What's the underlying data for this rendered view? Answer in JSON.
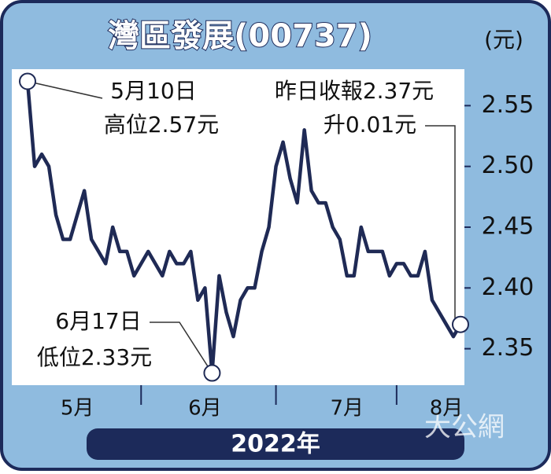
{
  "chart_data": {
    "type": "line",
    "title": "灣區發展(00737)",
    "unit": "(元)",
    "year_label": "2022年",
    "watermark": "大公網",
    "color": "#1f2a55",
    "background": "#8fbbdf",
    "frame_color": "#1c2a5a",
    "values": [
      2.57,
      2.5,
      2.51,
      2.5,
      2.46,
      2.44,
      2.44,
      2.46,
      2.48,
      2.44,
      2.43,
      2.42,
      2.45,
      2.43,
      2.43,
      2.41,
      2.42,
      2.43,
      2.42,
      2.41,
      2.43,
      2.42,
      2.42,
      2.43,
      2.39,
      2.4,
      2.33,
      2.41,
      2.38,
      2.36,
      2.39,
      2.4,
      2.4,
      2.43,
      2.45,
      2.5,
      2.52,
      2.49,
      2.47,
      2.53,
      2.48,
      2.47,
      2.47,
      2.45,
      2.44,
      2.41,
      2.41,
      2.45,
      2.43,
      2.43,
      2.43,
      2.41,
      2.42,
      2.42,
      2.41,
      2.41,
      2.43,
      2.39,
      2.38,
      2.37,
      2.36,
      2.37
    ],
    "xlim": [
      0,
      61
    ],
    "xticks": [
      {
        "value": 7,
        "label": "5月"
      },
      {
        "value": 25,
        "label": "6月"
      },
      {
        "value": 45,
        "label": "7月"
      },
      {
        "value": 59,
        "label": "8月"
      }
    ],
    "ylim": [
      2.32,
      2.58
    ],
    "yticks": [
      {
        "value": 2.35,
        "label": "2.35"
      },
      {
        "value": 2.4,
        "label": "2.40"
      },
      {
        "value": 2.45,
        "label": "2.45"
      },
      {
        "value": 2.5,
        "label": "2.50"
      },
      {
        "value": 2.55,
        "label": "2.55"
      }
    ],
    "annotations": [
      {
        "index": 0,
        "lines": [
          "5月10日",
          "高位2.57元"
        ]
      },
      {
        "index": 26,
        "lines": [
          "6月17日",
          "低位2.33元"
        ]
      },
      {
        "index": 61,
        "lines": [
          "昨日收報2.37元",
          "升0.01元"
        ]
      }
    ]
  }
}
